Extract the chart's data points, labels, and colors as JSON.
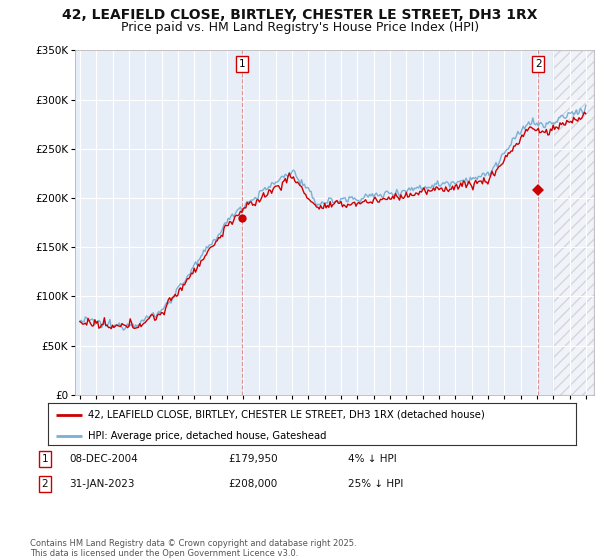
{
  "title": "42, LEAFIELD CLOSE, BIRTLEY, CHESTER LE STREET, DH3 1RX",
  "subtitle": "Price paid vs. HM Land Registry's House Price Index (HPI)",
  "ylim": [
    0,
    350000
  ],
  "yticks": [
    0,
    50000,
    100000,
    150000,
    200000,
    250000,
    300000,
    350000
  ],
  "ytick_labels": [
    "£0",
    "£50K",
    "£100K",
    "£150K",
    "£200K",
    "£250K",
    "£300K",
    "£350K"
  ],
  "xlim_start": 1994.7,
  "xlim_end": 2026.5,
  "transaction1_x": 2004.94,
  "transaction1_y": 179950,
  "transaction2_x": 2023.08,
  "transaction2_y": 208000,
  "line_color_price": "#cc0000",
  "line_color_hpi": "#7ab0d4",
  "background_color": "#ffffff",
  "plot_bg_color": "#e8eef8",
  "grid_color": "#ffffff",
  "legend_label_price": "42, LEAFIELD CLOSE, BIRTLEY, CHESTER LE STREET, DH3 1RX (detached house)",
  "legend_label_hpi": "HPI: Average price, detached house, Gateshead",
  "transaction1_date": "08-DEC-2004",
  "transaction1_price": "£179,950",
  "transaction1_hpi": "4% ↓ HPI",
  "transaction2_date": "31-JAN-2023",
  "transaction2_price": "£208,000",
  "transaction2_hpi": "25% ↓ HPI",
  "footer": "Contains HM Land Registry data © Crown copyright and database right 2025.\nThis data is licensed under the Open Government Licence v3.0.",
  "title_fontsize": 10,
  "subtitle_fontsize": 9
}
